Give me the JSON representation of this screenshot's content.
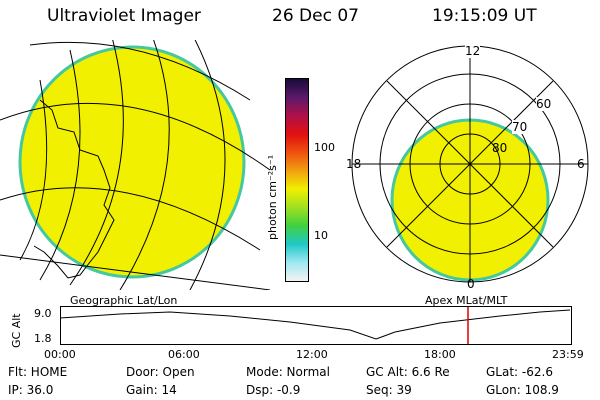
{
  "header": {
    "title": "Ultraviolet Imager",
    "date": "26 Dec 07",
    "time": "19:15:09 UT"
  },
  "colors": {
    "fill": "#f0f000",
    "rim": "#44c8a0",
    "marker": "#e00000"
  },
  "colorbar": {
    "label": "photon cm⁻²s⁻¹",
    "ticks": [
      "100",
      "10"
    ],
    "stops": [
      "#1a0a3a",
      "#5a1a6a",
      "#b0104a",
      "#e01010",
      "#f05010",
      "#f0a010",
      "#f0f000",
      "#a0e020",
      "#40d040",
      "#20c8c8",
      "#a0e8f0",
      "#f4f4f4"
    ]
  },
  "left_panel": {
    "caption": "Geographic Lat/Lon"
  },
  "right_panel": {
    "caption": "Apex MLat/MLT",
    "mlt_labels": {
      "top": "12",
      "left": "18",
      "right": "6",
      "bottom": "0"
    },
    "lat_labels": [
      "60",
      "70",
      "80"
    ]
  },
  "altitude_plot": {
    "axis_label": "GC Alt",
    "y_ticks": [
      "9.0",
      "1.8"
    ],
    "x_ticks": [
      "00:00",
      "06:00",
      "12:00",
      "18:00",
      "23:59"
    ],
    "marker_time": "19:15"
  },
  "status": {
    "flt": "Flt: HOME",
    "ip": "IP: 36.0",
    "door": "Door: Open",
    "gain": "Gain: 14",
    "mode": "Mode: Normal",
    "dsp": "Dsp:  -0.9",
    "gcalt": "GC Alt: 6.6 Re",
    "seq": "Seq: 39",
    "glat": "GLat: -62.6",
    "glon": "GLon: 108.9"
  }
}
